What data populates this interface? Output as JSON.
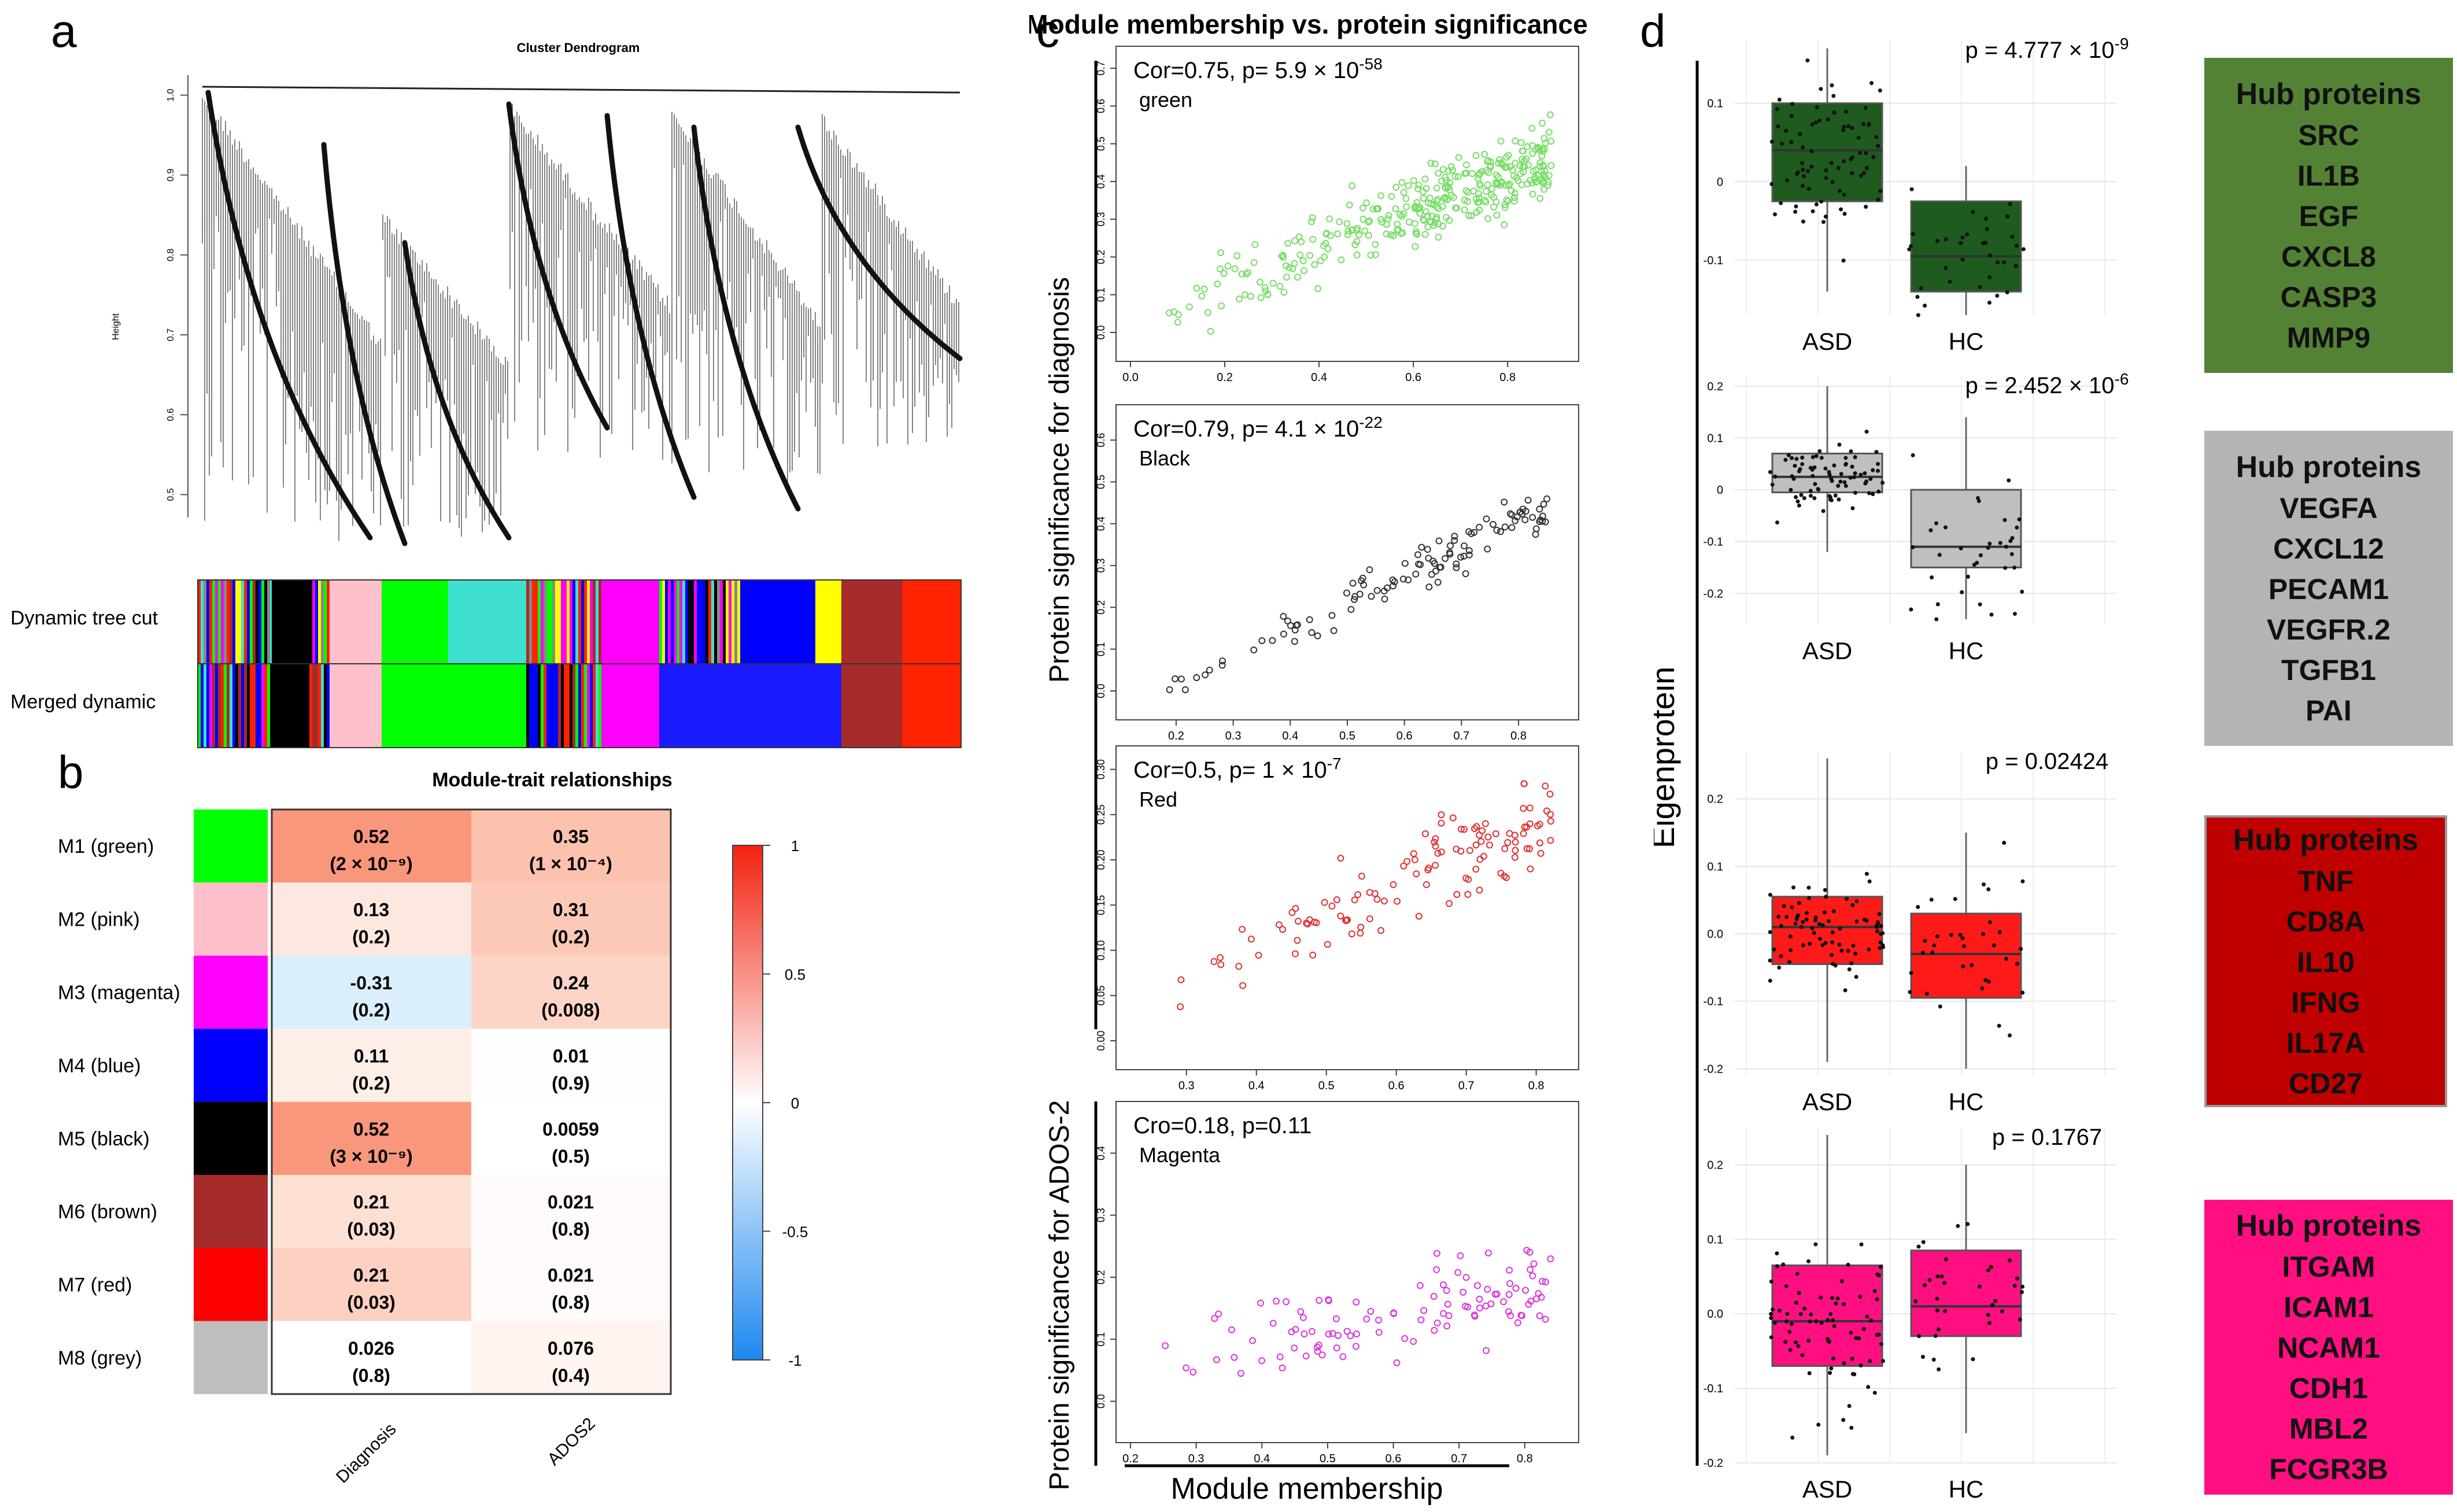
{
  "panels": {
    "a": "a",
    "b": "b",
    "c": "c",
    "d": "d"
  },
  "dendro": {
    "title": "Cluster Dendrogram",
    "ylabel": "Height",
    "yticks": [
      "0.5",
      "0.6",
      "0.7",
      "0.8",
      "0.9",
      "1.0"
    ],
    "row1": "Dynamic tree cut",
    "row2": "Merged dynamic"
  },
  "heatmap": {
    "title": "Module-trait relationships",
    "columns": [
      "Diagnosis",
      "ADOS2"
    ],
    "rows": [
      {
        "label": "M1 (green)",
        "color": "#00ff00",
        "cells": [
          {
            "v": "0.52",
            "p": "(2 × 10⁻⁹)",
            "fill": "#f9977c"
          },
          {
            "v": "0.35",
            "p": "(1 × 10⁻⁴)",
            "fill": "#fcc2ae"
          }
        ]
      },
      {
        "label": "M2 (pink)",
        "color": "#ffc0cb",
        "cells": [
          {
            "v": "0.13",
            "p": "(0.2)",
            "fill": "#fde8e0"
          },
          {
            "v": "0.31",
            "p": "(0.2)",
            "fill": "#fcc9b8"
          }
        ]
      },
      {
        "label": "M3 (magenta)",
        "color": "#ff00ff",
        "cells": [
          {
            "v": "-0.31",
            "p": "(0.2)",
            "fill": "#dbeefb"
          },
          {
            "v": "0.24",
            "p": "(0.008)",
            "fill": "#fdd5c7"
          }
        ]
      },
      {
        "label": "M4 (blue)",
        "color": "#0000ff",
        "cells": [
          {
            "v": "0.11",
            "p": "(0.2)",
            "fill": "#feeee8"
          },
          {
            "v": "0.01",
            "p": "(0.9)",
            "fill": "#fffefe"
          }
        ]
      },
      {
        "label": "M5 (black)",
        "color": "#000000",
        "cells": [
          {
            "v": "0.52",
            "p": "(3 × 10⁻⁹)",
            "fill": "#f9977c"
          },
          {
            "v": "0.0059",
            "p": "(0.5)",
            "fill": "#ffffff"
          }
        ]
      },
      {
        "label": "M6 (brown)",
        "color": "#a52a2a",
        "cells": [
          {
            "v": "0.21",
            "p": "(0.03)",
            "fill": "#fddfd4"
          },
          {
            "v": "0.021",
            "p": "(0.8)",
            "fill": "#fffbfa"
          }
        ]
      },
      {
        "label": "M7 (red)",
        "color": "#ff0000",
        "cells": [
          {
            "v": "0.21",
            "p": "(0.03)",
            "fill": "#fcd1c2"
          },
          {
            "v": "0.021",
            "p": "(0.8)",
            "fill": "#fffbfa"
          }
        ]
      },
      {
        "label": "M8 (grey)",
        "color": "#bebebe",
        "cells": [
          {
            "v": "0.026",
            "p": "(0.8)",
            "fill": "#ffffff"
          },
          {
            "v": "0.076",
            "p": "(0.4)",
            "fill": "#fff4f0"
          }
        ]
      }
    ],
    "legend_ticks": [
      "1",
      "0.5",
      "0",
      "-0.5",
      "-1"
    ]
  },
  "chart_data": [
    {
      "type": "scatter",
      "panel": "c",
      "title": "Module membership vs. protein significance",
      "xlabel": "Module membership",
      "ylabel_main": "Protein significance for diagnosis",
      "ylabel_ados": "Protein significance for ADOS-2",
      "subplots": [
        {
          "name": "green",
          "annotation_base": "Cor=0.75, p=  5.9 × 10",
          "annotation_exp": "-58",
          "label": "green",
          "color": "#77dd66",
          "xlim": [
            0,
            0.92
          ],
          "ylim": [
            0,
            0.72
          ],
          "xticks": [
            "0.0",
            "0.2",
            "0.4",
            "0.6",
            "0.8"
          ],
          "yticks": [
            "0.0",
            "0.1",
            "0.2",
            "0.3",
            "0.4",
            "0.5",
            "0.6",
            "0.7"
          ],
          "n": 340,
          "slope": 0.5,
          "intercept": 0.02,
          "noise": 0.09
        },
        {
          "name": "black",
          "annotation_base": "Cor=0.79, p= 4.1 × 10",
          "annotation_exp": "-22",
          "label": "Black",
          "color": "#333333",
          "xlim": [
            0.12,
            0.88
          ],
          "ylim": [
            0,
            0.65
          ],
          "xticks": [
            "0.2",
            "0.3",
            "0.4",
            "0.5",
            "0.6",
            "0.7",
            "0.8"
          ],
          "yticks": [
            "0.0",
            "0.1",
            "0.2",
            "0.3",
            "0.4",
            "0.5",
            "0.6"
          ],
          "n": 110,
          "slope": 0.65,
          "intercept": -0.12,
          "noise": 0.06
        },
        {
          "name": "red",
          "annotation_base": "Cor=0.5, p= 1 × 10",
          "annotation_exp": "-7",
          "label": "Red",
          "color": "#e03030",
          "xlim": [
            0.22,
            0.84
          ],
          "ylim": [
            0,
            0.31
          ],
          "xticks": [
            "0.3",
            "0.4",
            "0.5",
            "0.6",
            "0.7",
            "0.8"
          ],
          "yticks": [
            "0.00",
            "0.05",
            "0.10",
            "0.15",
            "0.20",
            "0.25",
            "0.30"
          ],
          "n": 120,
          "slope": 0.32,
          "intercept": -0.02,
          "noise": 0.05
        },
        {
          "name": "magenta",
          "annotation_base": "Cro=0.18, p=0.11",
          "annotation_exp": "",
          "label": "Magenta",
          "color": "#dd33dd",
          "xlim": [
            0.2,
            0.86
          ],
          "ylim": [
            -0.02,
            0.46
          ],
          "xticks": [
            "0.2",
            "0.3",
            "0.4",
            "0.5",
            "0.6",
            "0.7",
            "0.8"
          ],
          "yticks": [
            "0.0",
            "0.1",
            "0.2",
            "0.3",
            "0.4"
          ],
          "n": 110,
          "slope": 0.15,
          "intercept": 0.05,
          "noise": 0.07
        }
      ]
    },
    {
      "type": "box",
      "panel": "d",
      "ylabel": "Eigenprotein",
      "categories": [
        "ASD",
        "HC"
      ],
      "subplots": [
        {
          "p": "p = 4.777 × 10",
          "pexp": "-9",
          "fill": "#1f5a1f",
          "ylim": [
            -0.17,
            0.18
          ],
          "yticks": [
            "0.1",
            "0",
            "-0.1"
          ],
          "ytickvals": [
            0.1,
            0,
            -0.1
          ],
          "boxes": [
            {
              "q1": -0.025,
              "med": 0.04,
              "q3": 0.1,
              "lo": -0.14,
              "hi": 0.17
            },
            {
              "q1": -0.14,
              "med": -0.095,
              "q3": -0.025,
              "lo": -0.17,
              "hi": 0.02
            }
          ]
        },
        {
          "p": "p = 2.452 × 10",
          "pexp": "-6",
          "fill": "#bfbfbf",
          "ylim": [
            -0.26,
            0.22
          ],
          "yticks": [
            "0.2",
            "0.1",
            "0",
            "-0.1",
            "-0.2"
          ],
          "ytickvals": [
            0.2,
            0.1,
            0,
            -0.1,
            -0.2
          ],
          "boxes": [
            {
              "q1": -0.005,
              "med": 0.025,
              "q3": 0.07,
              "lo": -0.12,
              "hi": 0.2
            },
            {
              "q1": -0.15,
              "med": -0.11,
              "q3": 0.0,
              "lo": -0.25,
              "hi": 0.14
            }
          ]
        },
        {
          "p": "p = 0.02424",
          "pexp": "",
          "fill": "#ff1a1a",
          "ylim": [
            -0.21,
            0.27
          ],
          "yticks": [
            "0.2",
            "0.1",
            "0.0",
            "-0.1",
            "-0.2"
          ],
          "ytickvals": [
            0.2,
            0.1,
            0,
            -0.1,
            -0.2
          ],
          "boxes": [
            {
              "q1": -0.045,
              "med": 0.01,
              "q3": 0.055,
              "lo": -0.19,
              "hi": 0.26
            },
            {
              "q1": -0.095,
              "med": -0.03,
              "q3": 0.03,
              "lo": -0.2,
              "hi": 0.15
            }
          ]
        },
        {
          "p": "p = 0.1767",
          "pexp": "",
          "fill": "#ff0f80",
          "ylim": [
            -0.2,
            0.25
          ],
          "yticks": [
            "0.2",
            "0.1",
            "0.0",
            "-0.1",
            "-0.2"
          ],
          "ytickvals": [
            0.2,
            0.1,
            0,
            -0.1,
            -0.2
          ],
          "boxes": [
            {
              "q1": -0.07,
              "med": -0.01,
              "q3": 0.065,
              "lo": -0.19,
              "hi": 0.24
            },
            {
              "q1": -0.03,
              "med": 0.01,
              "q3": 0.085,
              "lo": -0.16,
              "hi": 0.2
            }
          ]
        }
      ]
    }
  ],
  "hubs": [
    {
      "title": "Hub proteins",
      "items": [
        "SRC",
        "IL1B",
        "EGF",
        "CXCL8",
        "CASP3",
        "MMP9"
      ],
      "bg": "#548235",
      "border": "#548235"
    },
    {
      "title": "Hub proteins",
      "items": [
        "VEGFA",
        "CXCL12",
        "PECAM1",
        "VEGFR.2",
        "TGFB1",
        "PAI"
      ],
      "bg": "#b4b4b4",
      "border": "#b4b4b4"
    },
    {
      "title": "Hub proteins",
      "items": [
        "TNF",
        "CD8A",
        "IL10",
        "IFNG",
        "IL17A",
        "CD27"
      ],
      "bg": "#c00000",
      "border": "#999999"
    },
    {
      "title": "Hub proteins",
      "items": [
        "ITGAM",
        "ICAM1",
        "NCAM1",
        "CDH1",
        "MBL2",
        "FCGR3B"
      ],
      "bg": "#ff0f80",
      "border": "#ff0f80"
    }
  ]
}
